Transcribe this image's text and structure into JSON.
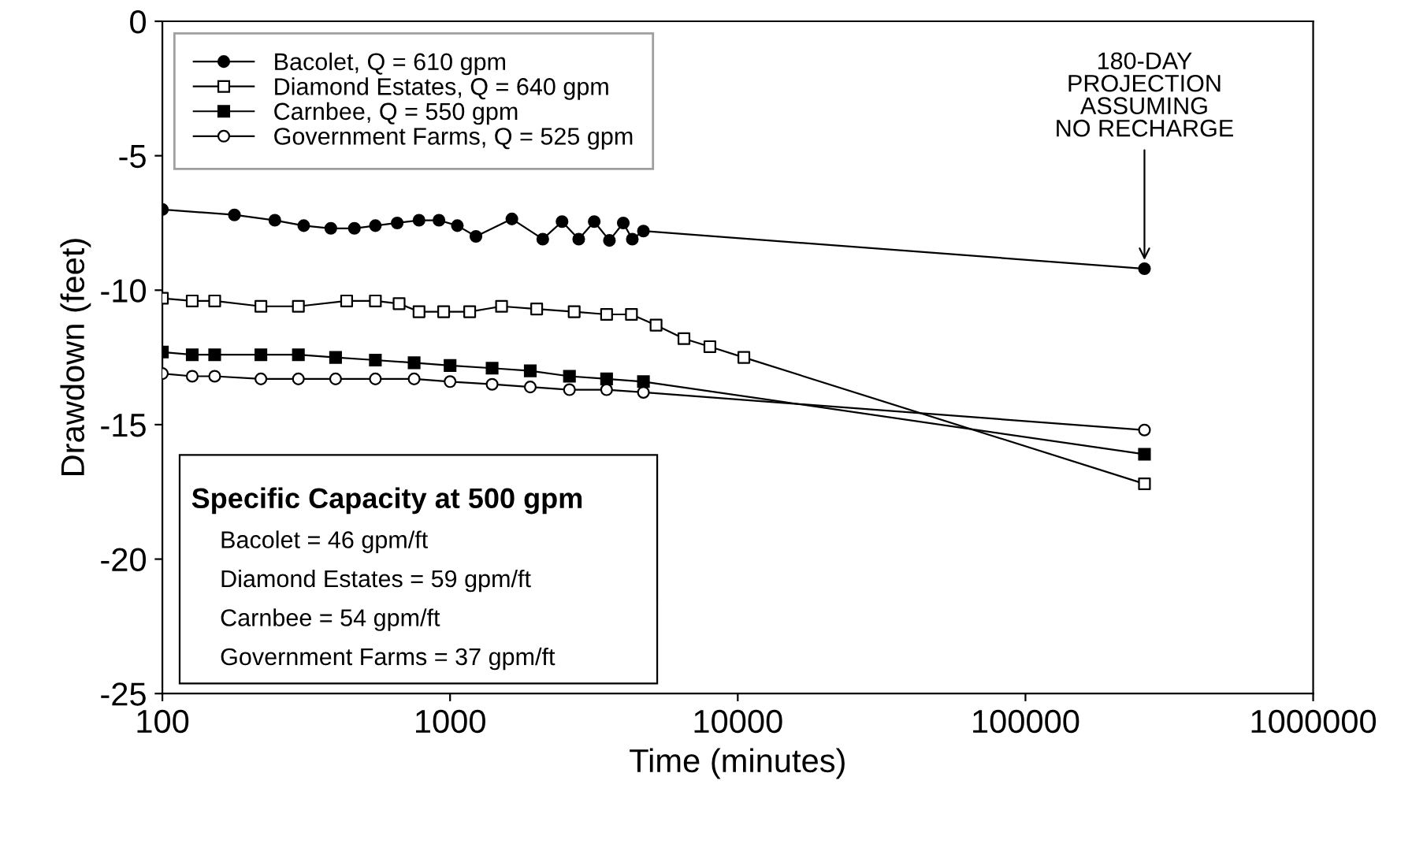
{
  "chart_data": {
    "type": "line",
    "xlabel": "Time (minutes)",
    "ylabel": "Drawdown (feet)",
    "log": "x",
    "xlim": [
      100,
      1000000
    ],
    "xticks": [
      100,
      1000,
      10000,
      100000,
      1000000
    ],
    "ylim": [
      -25,
      0
    ],
    "yticks": [
      0,
      -5,
      -10,
      -15,
      -20,
      -25
    ],
    "grid": false,
    "legend": "top left",
    "series": [
      {
        "name": "Bacolet, Q = 610 gpm",
        "color": "#000000",
        "marker": "circle",
        "x": [
          100,
          178,
          246,
          310,
          385,
          465,
          550,
          655,
          780,
          915,
          1060,
          1230,
          1640,
          2100,
          2450,
          2800,
          3170,
          3580,
          4000,
          4300,
          4700,
          259200
        ],
        "values": [
          -7.0,
          -7.2,
          -7.4,
          -7.6,
          -7.7,
          -7.7,
          -7.6,
          -7.5,
          -7.4,
          -7.4,
          -7.6,
          -8.0,
          -7.35,
          -8.1,
          -7.45,
          -8.1,
          -7.45,
          -8.15,
          -7.5,
          -8.1,
          -7.8,
          -9.2
        ]
      },
      {
        "name": "Diamond Estates, Q = 640 gpm",
        "color": "#000000",
        "marker": "square",
        "colors": [
          "#ffffff",
          "#ffffff",
          "#ffffff",
          "#ffffff",
          "#ffffff",
          "#ffffff",
          "#ffffff",
          "#ffffff",
          "#ffffff",
          "#ffffff",
          "#ffffff",
          "#ffffff",
          "#ffffff",
          "#ffffff",
          "#ffffff",
          "#ffffff",
          "#ffffff",
          "#ffffff",
          "#ffffff",
          "#ffffff",
          "#ffffff"
        ],
        "x": [
          100,
          127,
          152,
          220,
          297,
          437,
          550,
          665,
          780,
          950,
          1170,
          1510,
          2000,
          2700,
          3500,
          4270,
          5200,
          6500,
          8000,
          10500,
          259200
        ],
        "values": [
          -10.3,
          -10.4,
          -10.4,
          -10.6,
          -10.6,
          -10.4,
          -10.4,
          -10.5,
          -10.8,
          -10.8,
          -10.8,
          -10.6,
          -10.7,
          -10.8,
          -10.9,
          -10.9,
          -11.3,
          -11.8,
          -12.1,
          -12.5,
          -17.2
        ]
      },
      {
        "name": "Carnbee, Q = 550 gpm",
        "color": "#000000",
        "marker": "square",
        "x": [
          100,
          127,
          152,
          220,
          297,
          400,
          550,
          750,
          1000,
          1400,
          1900,
          2600,
          3500,
          4700,
          259200
        ],
        "values": [
          -12.3,
          -12.4,
          -12.4,
          -12.4,
          -12.4,
          -12.5,
          -12.6,
          -12.7,
          -12.8,
          -12.9,
          -13.0,
          -13.2,
          -13.3,
          -13.4,
          -16.1
        ]
      },
      {
        "name": "Government Farms, Q = 525 gpm",
        "color": "#000000",
        "marker": "circle",
        "colors": [
          "#ffffff",
          "#ffffff",
          "#ffffff",
          "#ffffff",
          "#ffffff",
          "#ffffff",
          "#ffffff",
          "#ffffff",
          "#ffffff",
          "#ffffff",
          "#ffffff",
          "#ffffff",
          "#ffffff",
          "#ffffff",
          "#ffffff"
        ],
        "x": [
          100,
          127,
          152,
          220,
          297,
          400,
          550,
          750,
          1000,
          1400,
          1900,
          2600,
          3500,
          4700,
          259200
        ],
        "values": [
          -13.1,
          -13.2,
          -13.2,
          -13.3,
          -13.3,
          -13.3,
          -13.3,
          -13.3,
          -13.4,
          -13.5,
          -13.6,
          -13.7,
          -13.7,
          -13.8,
          -15.2
        ]
      }
    ],
    "annotations": [
      {
        "text": "180-DAY\nPROJECTION\nASSUMING\nNO RECHARGE",
        "x": 259200,
        "y": -9.2
      },
      "Specific Capacity at 500 gpm",
      "Bacolet = 46 gpm/ft",
      "Diamond Estates = 59 gpm/ft",
      "Carnbee = 54 gpm/ft",
      "Government Farms = 37 gpm/ft"
    ]
  }
}
